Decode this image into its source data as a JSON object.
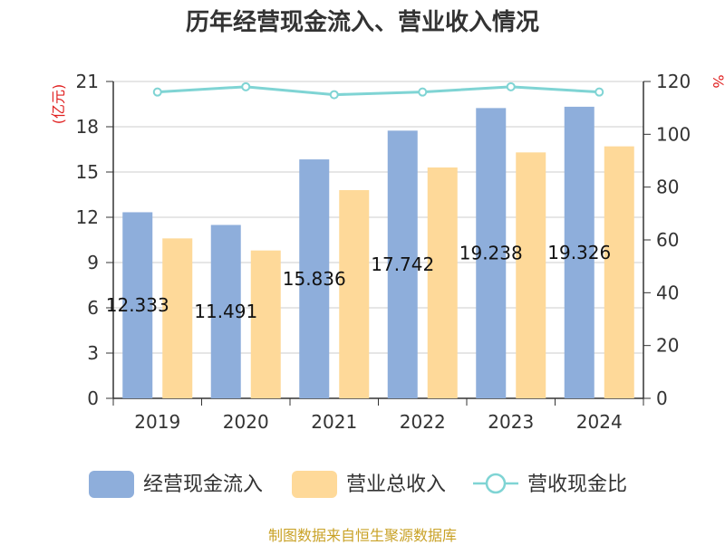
{
  "chart_data": {
    "type": "bar",
    "title": "历年经营现金流入、营业收入情况",
    "categories": [
      "2019",
      "2020",
      "2021",
      "2022",
      "2023",
      "2024"
    ],
    "series": [
      {
        "name": "经营现金流入",
        "kind": "bar",
        "axis": "left",
        "color": "#8eaedb",
        "values": [
          12.333,
          11.491,
          15.836,
          17.742,
          19.238,
          19.326
        ]
      },
      {
        "name": "营业总收入",
        "kind": "bar",
        "axis": "left",
        "color": "#fed999",
        "values": [
          10.6,
          9.8,
          13.8,
          15.3,
          16.3,
          16.7
        ]
      },
      {
        "name": "营收现金比",
        "kind": "line",
        "axis": "right",
        "color": "#7fd4d4",
        "values": [
          116,
          118,
          115,
          116,
          118,
          116
        ]
      }
    ],
    "data_labels": [
      "12.333",
      "11.491",
      "15.836",
      "17.742",
      "19.238",
      "19.326"
    ],
    "y_left": {
      "unit": "(亿元)",
      "ylim": [
        0,
        21
      ],
      "ticks": [
        "0",
        "3",
        "6",
        "9",
        "12",
        "15",
        "18",
        "21"
      ]
    },
    "y_right": {
      "unit": "%",
      "ylim": [
        0,
        120
      ],
      "ticks": [
        "0",
        "20",
        "40",
        "60",
        "80",
        "100",
        "120"
      ]
    },
    "grid": true,
    "legend_position": "bottom"
  },
  "source_note": "制图数据来自恒生聚源数据库"
}
